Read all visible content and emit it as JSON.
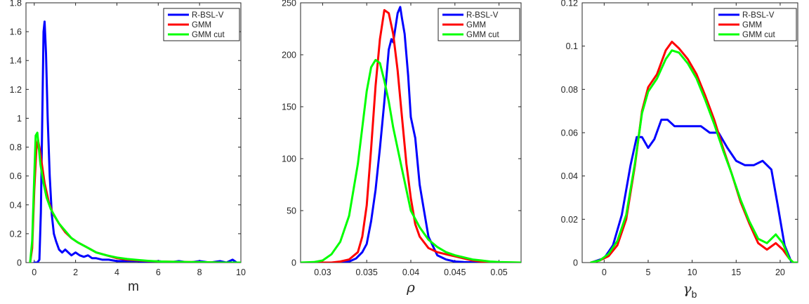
{
  "colors": {
    "R-BSL-V": "#0000ff",
    "GMM": "#ff0000",
    "GMM cut": "#00ff00"
  },
  "chart_data": [
    {
      "type": "line",
      "xlabel": "m",
      "xlim": [
        -0.4,
        10
      ],
      "ylim": [
        0,
        1.8
      ],
      "xticks": [
        0,
        2,
        4,
        6,
        8,
        10
      ],
      "xtick_labels": [
        "0",
        "2",
        "4",
        "6",
        "8",
        "10"
      ],
      "yticks": [
        0,
        0.2,
        0.4,
        0.6,
        0.8,
        1,
        1.2,
        1.4,
        1.6,
        1.8
      ],
      "ytick_labels": [
        "0",
        "0.2",
        "0.4",
        "0.6",
        "0.8",
        "1",
        "1.2",
        "1.4",
        "1.6",
        "1.8"
      ],
      "legend_position": "top-right",
      "grid": false,
      "series": [
        {
          "name": "R-BSL-V",
          "color": "#0000ff",
          "x": [
            0.0,
            0.15,
            0.25,
            0.32,
            0.4,
            0.45,
            0.5,
            0.57,
            0.65,
            0.75,
            0.85,
            0.95,
            1.05,
            1.2,
            1.35,
            1.5,
            1.65,
            1.8,
            2.0,
            2.2,
            2.4,
            2.6,
            2.8,
            3.0,
            3.3,
            3.6,
            4.0,
            4.5,
            5.0,
            5.5,
            6.0,
            6.5,
            7.0,
            7.5,
            8.0,
            8.5,
            9.0,
            9.3,
            9.6,
            9.8
          ],
          "y": [
            0,
            0.0,
            0.02,
            0.35,
            1.1,
            1.6,
            1.67,
            1.45,
            1.0,
            0.6,
            0.33,
            0.2,
            0.15,
            0.09,
            0.07,
            0.09,
            0.07,
            0.05,
            0.07,
            0.05,
            0.04,
            0.05,
            0.03,
            0.03,
            0.02,
            0.02,
            0.01,
            0.01,
            0.01,
            0.0,
            0.01,
            0.0,
            0.01,
            0.0,
            0.01,
            0.0,
            0.01,
            0.0,
            0.02,
            0.0
          ]
        },
        {
          "name": "GMM",
          "color": "#ff0000",
          "x": [
            -0.2,
            -0.1,
            0.0,
            0.1,
            0.18,
            0.25,
            0.35,
            0.5,
            0.7,
            0.9,
            1.2,
            1.5,
            1.8,
            2.1,
            2.5,
            3.0,
            3.5,
            4.0,
            4.5,
            5.0,
            5.5,
            6.0,
            6.5,
            7.0,
            7.5,
            8.0,
            8.5,
            9.0
          ],
          "y": [
            0,
            0.1,
            0.5,
            0.78,
            0.85,
            0.8,
            0.7,
            0.55,
            0.42,
            0.34,
            0.27,
            0.21,
            0.17,
            0.14,
            0.11,
            0.07,
            0.05,
            0.03,
            0.02,
            0.015,
            0.01,
            0.008,
            0.006,
            0.005,
            0.004,
            0.003,
            0.002,
            0.0
          ]
        },
        {
          "name": "GMM cut",
          "color": "#00ff00",
          "x": [
            -0.2,
            -0.1,
            0.0,
            0.07,
            0.15,
            0.22,
            0.3,
            0.45,
            0.6,
            0.8,
            1.0,
            1.2,
            1.5,
            1.8,
            2.1,
            2.5,
            3.0,
            3.5,
            4.0,
            4.5,
            5.0,
            5.5,
            6.0,
            6.5,
            7.0,
            7.5,
            8.0,
            8.5,
            9.0
          ],
          "y": [
            0,
            0.15,
            0.6,
            0.88,
            0.9,
            0.8,
            0.68,
            0.55,
            0.45,
            0.37,
            0.32,
            0.27,
            0.22,
            0.17,
            0.14,
            0.11,
            0.07,
            0.05,
            0.035,
            0.025,
            0.018,
            0.012,
            0.008,
            0.006,
            0.005,
            0.004,
            0.003,
            0.002,
            0.0
          ]
        }
      ]
    },
    {
      "type": "line",
      "xlabel": "ρ",
      "xlim": [
        0.0275,
        0.0525
      ],
      "ylim": [
        0,
        250
      ],
      "xticks": [
        0.03,
        0.035,
        0.04,
        0.045,
        0.05
      ],
      "xtick_labels": [
        "0.03",
        "0.035",
        "0.04",
        "0.045",
        "0.05"
      ],
      "yticks": [
        0,
        50,
        100,
        150,
        200,
        250
      ],
      "ytick_labels": [
        "0",
        "50",
        "100",
        "150",
        "200",
        "250"
      ],
      "legend_position": "top-right",
      "grid": false,
      "series": [
        {
          "name": "R-BSL-V",
          "color": "#0000ff",
          "x": [
            0.032,
            0.033,
            0.0338,
            0.0345,
            0.035,
            0.0355,
            0.036,
            0.0365,
            0.037,
            0.0375,
            0.0378,
            0.038,
            0.0385,
            0.0388,
            0.039,
            0.0393,
            0.0397,
            0.04,
            0.0405,
            0.041,
            0.0415,
            0.042,
            0.043,
            0.044,
            0.045,
            0.046,
            0.048
          ],
          "y": [
            0,
            1,
            4,
            10,
            18,
            40,
            70,
            110,
            155,
            205,
            215,
            212,
            240,
            246,
            235,
            220,
            180,
            140,
            120,
            75,
            50,
            25,
            7,
            3,
            1,
            0.5,
            0
          ],
          "extend_to_edge": true
        },
        {
          "name": "GMM",
          "color": "#ff0000",
          "x": [
            0.031,
            0.032,
            0.033,
            0.034,
            0.0345,
            0.035,
            0.0355,
            0.036,
            0.0365,
            0.037,
            0.0375,
            0.038,
            0.0385,
            0.039,
            0.0395,
            0.04,
            0.0405,
            0.041,
            0.042,
            0.043,
            0.044,
            0.045,
            0.046,
            0.047,
            0.048,
            0.049
          ],
          "y": [
            0,
            1,
            3,
            10,
            25,
            55,
            110,
            170,
            215,
            243,
            240,
            220,
            185,
            140,
            95,
            62,
            37,
            25,
            14,
            10,
            8,
            6,
            4,
            2,
            1,
            0.3
          ],
          "extend_to_edge": true
        },
        {
          "name": "GMM cut",
          "color": "#00ff00",
          "x": [
            0.0275,
            0.029,
            0.03,
            0.031,
            0.032,
            0.033,
            0.034,
            0.035,
            0.0355,
            0.036,
            0.0365,
            0.037,
            0.0375,
            0.038,
            0.039,
            0.04,
            0.041,
            0.042,
            0.043,
            0.044,
            0.045,
            0.046,
            0.047,
            0.048,
            0.049,
            0.05
          ],
          "y": [
            0,
            0.5,
            2,
            8,
            20,
            45,
            95,
            165,
            188,
            195,
            192,
            175,
            155,
            130,
            90,
            50,
            34,
            22,
            15,
            10,
            7,
            5,
            3,
            2,
            1,
            0.5
          ],
          "extend_to_edge": true
        }
      ]
    },
    {
      "type": "line",
      "xlabel": "γ",
      "xlabel_sub": "b",
      "xlim": [
        -2.5,
        22
      ],
      "ylim": [
        0,
        0.12
      ],
      "xticks": [
        0,
        5,
        10,
        15,
        20
      ],
      "xtick_labels": [
        "0",
        "5",
        "10",
        "15",
        "20"
      ],
      "yticks": [
        0,
        0.02,
        0.04,
        0.06,
        0.08,
        0.1,
        0.12
      ],
      "ytick_labels": [
        "0",
        "0.02",
        "0.04",
        "0.06",
        "0.08",
        "0.1",
        "0.12"
      ],
      "legend_position": "top-right",
      "grid": false,
      "series": [
        {
          "name": "R-BSL-V",
          "color": "#0000ff",
          "x": [
            -1.5,
            0,
            1,
            2,
            3,
            3.7,
            4.3,
            5,
            5.7,
            6.5,
            7.2,
            8,
            9,
            10,
            11,
            12,
            13,
            14,
            15,
            16,
            17,
            18,
            19,
            19.7,
            20.5,
            21.3
          ],
          "y": [
            0,
            0.002,
            0.008,
            0.022,
            0.045,
            0.058,
            0.058,
            0.053,
            0.057,
            0.066,
            0.066,
            0.063,
            0.063,
            0.063,
            0.063,
            0.06,
            0.06,
            0.053,
            0.047,
            0.045,
            0.045,
            0.047,
            0.043,
            0.027,
            0.008,
            0.0
          ]
        },
        {
          "name": "GMM",
          "color": "#ff0000",
          "x": [
            -1.5,
            -0.5,
            0.5,
            1.5,
            2.5,
            3.5,
            4.3,
            5,
            6,
            7,
            7.7,
            8.5,
            9.5,
            10.5,
            11.5,
            12.5,
            13.5,
            14.5,
            15.5,
            16.5,
            17.5,
            18.5,
            19.5,
            20.3,
            21,
            21.5
          ],
          "y": [
            0,
            0.001,
            0.003,
            0.008,
            0.02,
            0.045,
            0.07,
            0.081,
            0.087,
            0.098,
            0.102,
            0.099,
            0.094,
            0.087,
            0.077,
            0.066,
            0.053,
            0.041,
            0.028,
            0.018,
            0.009,
            0.006,
            0.009,
            0.006,
            0.002,
            0.0
          ]
        },
        {
          "name": "GMM cut",
          "color": "#00ff00",
          "x": [
            -1.5,
            -0.5,
            0.5,
            1.5,
            2.5,
            3.5,
            4.3,
            5,
            6,
            7,
            7.7,
            8.5,
            9.5,
            10.5,
            11.5,
            12.5,
            13.5,
            14.5,
            15.5,
            16.5,
            17.5,
            18.5,
            19.5,
            20.3,
            21,
            21.5
          ],
          "y": [
            0,
            0.001,
            0.004,
            0.01,
            0.022,
            0.046,
            0.069,
            0.079,
            0.085,
            0.094,
            0.098,
            0.097,
            0.092,
            0.085,
            0.075,
            0.064,
            0.052,
            0.041,
            0.029,
            0.019,
            0.011,
            0.009,
            0.013,
            0.009,
            0.002,
            0.0
          ]
        }
      ]
    }
  ]
}
